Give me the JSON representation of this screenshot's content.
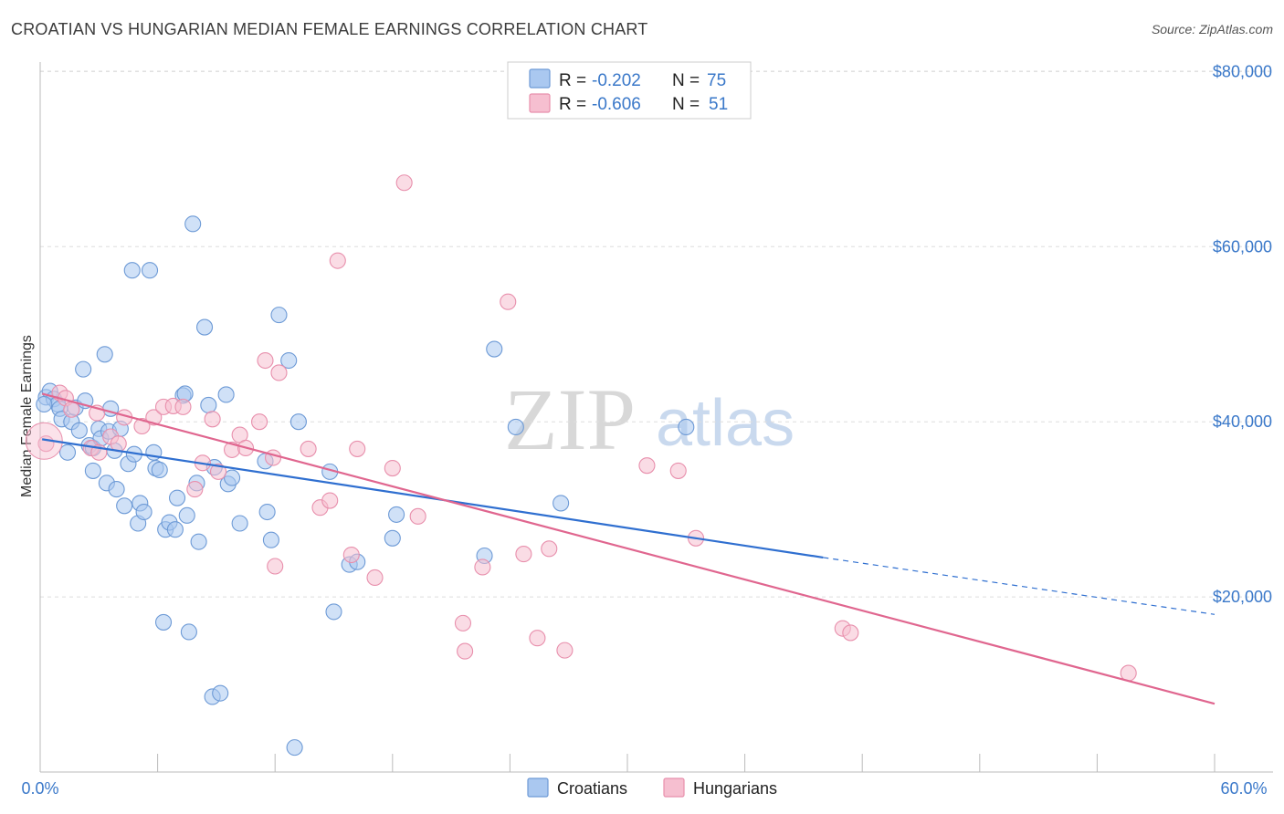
{
  "title": "CROATIAN VS HUNGARIAN MEDIAN FEMALE EARNINGS CORRELATION CHART",
  "source": "Source: ZipAtlas.com",
  "watermark": {
    "zip": "ZIP",
    "atlas": "atlas"
  },
  "colors": {
    "croatians_fill": "#aac8f0",
    "croatians_stroke": "#6d9ad6",
    "croatians_line": "#2f6fd0",
    "hungarians_fill": "#f6bfd0",
    "hungarians_stroke": "#e88fac",
    "hungarians_line": "#e0668f",
    "grid": "#dddddd",
    "axis_label": "#3a78c9"
  },
  "legend": {
    "rows": [
      {
        "r_label": "R =",
        "r_value": "-0.202",
        "n_label": "N =",
        "n_value": "75"
      },
      {
        "r_label": "R =",
        "r_value": "-0.606",
        "n_label": "N =",
        "n_value": "51"
      }
    ]
  },
  "bottom_legend": [
    "Croatians",
    "Hungarians"
  ],
  "chart_data": {
    "type": "scatter",
    "title": "CROATIAN VS HUNGARIAN MEDIAN FEMALE EARNINGS CORRELATION CHART",
    "xlabel": "",
    "ylabel": "Median Female Earnings",
    "xlim": [
      0,
      60
    ],
    "ylim": [
      0,
      84000
    ],
    "x_tick_labels": [
      "0.0%",
      "60.0%"
    ],
    "y_ticks": [
      20000,
      40000,
      60000,
      80000
    ],
    "y_tick_labels": [
      "$20,000",
      "$40,000",
      "$60,000",
      "$80,000"
    ],
    "grid": true,
    "legend_placement": "top-center",
    "series": [
      {
        "name": "Croatians",
        "r": -0.202,
        "n": 75,
        "trend": {
          "x0": 0.1,
          "y0": 38000,
          "x1": 40,
          "y1": 24500,
          "dash_to_x": 60,
          "dash_to_y": 18000
        },
        "points": [
          [
            0.3,
            42800
          ],
          [
            0.5,
            43500
          ],
          [
            0.7,
            42600
          ],
          [
            0.9,
            42000
          ],
          [
            1.0,
            41500
          ],
          [
            1.1,
            40300
          ],
          [
            1.4,
            36500
          ],
          [
            1.6,
            40000
          ],
          [
            1.8,
            41600
          ],
          [
            2.0,
            39000
          ],
          [
            2.2,
            46000
          ],
          [
            2.3,
            42400
          ],
          [
            2.5,
            37300
          ],
          [
            2.7,
            37000
          ],
          [
            2.7,
            34400
          ],
          [
            3.0,
            39200
          ],
          [
            3.1,
            38100
          ],
          [
            3.3,
            47700
          ],
          [
            3.4,
            33000
          ],
          [
            3.5,
            38900
          ],
          [
            3.6,
            41500
          ],
          [
            3.8,
            36700
          ],
          [
            3.9,
            32300
          ],
          [
            4.1,
            39200
          ],
          [
            4.3,
            30400
          ],
          [
            4.5,
            35200
          ],
          [
            4.7,
            57300
          ],
          [
            4.8,
            36300
          ],
          [
            5.0,
            28400
          ],
          [
            5.1,
            30700
          ],
          [
            5.3,
            29700
          ],
          [
            5.6,
            57300
          ],
          [
            5.8,
            36500
          ],
          [
            5.9,
            34700
          ],
          [
            6.1,
            34500
          ],
          [
            6.3,
            17100
          ],
          [
            6.4,
            27700
          ],
          [
            6.6,
            28500
          ],
          [
            6.9,
            27700
          ],
          [
            7.0,
            31300
          ],
          [
            7.3,
            43000
          ],
          [
            7.4,
            43200
          ],
          [
            7.5,
            29300
          ],
          [
            7.6,
            16000
          ],
          [
            7.8,
            62600
          ],
          [
            8.0,
            33000
          ],
          [
            8.1,
            26300
          ],
          [
            8.4,
            50800
          ],
          [
            8.6,
            41900
          ],
          [
            8.8,
            8600
          ],
          [
            8.9,
            34800
          ],
          [
            9.2,
            9000
          ],
          [
            9.5,
            43100
          ],
          [
            9.6,
            32900
          ],
          [
            9.8,
            33600
          ],
          [
            10.2,
            28400
          ],
          [
            11.5,
            35500
          ],
          [
            11.6,
            29700
          ],
          [
            11.8,
            26500
          ],
          [
            12.2,
            52200
          ],
          [
            12.7,
            47000
          ],
          [
            13.0,
            2800
          ],
          [
            13.2,
            40000
          ],
          [
            14.8,
            34300
          ],
          [
            15.0,
            18300
          ],
          [
            15.8,
            23700
          ],
          [
            16.2,
            24000
          ],
          [
            18.0,
            26700
          ],
          [
            18.2,
            29400
          ],
          [
            22.7,
            24700
          ],
          [
            23.2,
            48300
          ],
          [
            24.3,
            39400
          ],
          [
            26.6,
            30700
          ],
          [
            33.0,
            39400
          ],
          [
            0.2,
            42000
          ]
        ]
      },
      {
        "name": "Hungarians",
        "r": -0.606,
        "n": 51,
        "trend": {
          "x0": 0.1,
          "y0": 43200,
          "x1": 60,
          "y1": 7800
        },
        "points": [
          [
            0.3,
            37500
          ],
          [
            1.0,
            43300
          ],
          [
            1.3,
            42700
          ],
          [
            1.6,
            41400
          ],
          [
            2.6,
            37000
          ],
          [
            2.9,
            41000
          ],
          [
            3.0,
            36500
          ],
          [
            3.6,
            38300
          ],
          [
            4.0,
            37500
          ],
          [
            4.3,
            40500
          ],
          [
            5.2,
            39500
          ],
          [
            5.8,
            40500
          ],
          [
            6.3,
            41700
          ],
          [
            6.8,
            41800
          ],
          [
            7.3,
            41700
          ],
          [
            7.9,
            32300
          ],
          [
            8.3,
            35300
          ],
          [
            8.8,
            40300
          ],
          [
            9.1,
            34300
          ],
          [
            9.8,
            36800
          ],
          [
            10.2,
            38500
          ],
          [
            10.5,
            37000
          ],
          [
            11.2,
            40000
          ],
          [
            11.5,
            47000
          ],
          [
            11.9,
            35900
          ],
          [
            12.0,
            23500
          ],
          [
            12.2,
            45600
          ],
          [
            13.7,
            36900
          ],
          [
            14.3,
            30200
          ],
          [
            14.8,
            31000
          ],
          [
            15.2,
            58400
          ],
          [
            15.9,
            24800
          ],
          [
            16.2,
            36900
          ],
          [
            17.1,
            22200
          ],
          [
            18.0,
            34700
          ],
          [
            18.6,
            67300
          ],
          [
            19.3,
            29200
          ],
          [
            21.6,
            17000
          ],
          [
            21.7,
            13800
          ],
          [
            22.6,
            23400
          ],
          [
            23.9,
            53700
          ],
          [
            24.7,
            24900
          ],
          [
            25.4,
            15300
          ],
          [
            26.0,
            25500
          ],
          [
            26.8,
            13900
          ],
          [
            31.0,
            35000
          ],
          [
            32.6,
            34400
          ],
          [
            33.5,
            26700
          ],
          [
            41.0,
            16400
          ],
          [
            41.4,
            15900
          ],
          [
            55.6,
            11300
          ]
        ]
      }
    ]
  }
}
